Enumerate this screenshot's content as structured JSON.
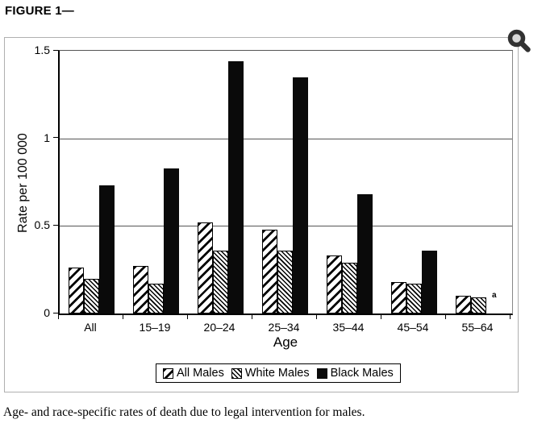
{
  "figure_label": "FIGURE 1—",
  "caption": "Age- and race-specific rates of death due to legal intervention for males.",
  "zoom_icon_name": "magnifier",
  "colors": {
    "bar_solid": "#0a0a0a",
    "hatch": "#000000",
    "panel_border": "#b0b0b0",
    "grid_line": "#555555",
    "axis": "#000000",
    "icon": "#323232"
  },
  "chart_data": {
    "type": "bar",
    "title": "",
    "categories": [
      "All",
      "15–19",
      "20–24",
      "25–34",
      "35–44",
      "45–54",
      "55–64"
    ],
    "series": [
      {
        "name": "All Males",
        "pattern": "diagonal-hatch",
        "values": [
          0.26,
          0.27,
          0.52,
          0.48,
          0.33,
          0.18,
          0.1
        ]
      },
      {
        "name": "White Males",
        "pattern": "fine-diagonal-hatch",
        "values": [
          0.2,
          0.17,
          0.36,
          0.36,
          0.29,
          0.17,
          0.09
        ]
      },
      {
        "name": "Black Males",
        "pattern": "solid-black",
        "values": [
          0.73,
          0.83,
          1.44,
          1.35,
          0.68,
          0.36,
          null
        ]
      }
    ],
    "xlabel": "Age",
    "ylabel": "Rate per 100 000",
    "ylim": [
      0,
      1.5
    ],
    "yticks": [
      0,
      0.5,
      1,
      1.5
    ],
    "ytick_labels": [
      "0",
      "0.5",
      "1",
      "1.5"
    ],
    "grid": true,
    "legend_position": "bottom-inside",
    "footnote": {
      "marker": "a",
      "attached_to": "55–64 group (no Black Males bar shown)"
    }
  }
}
